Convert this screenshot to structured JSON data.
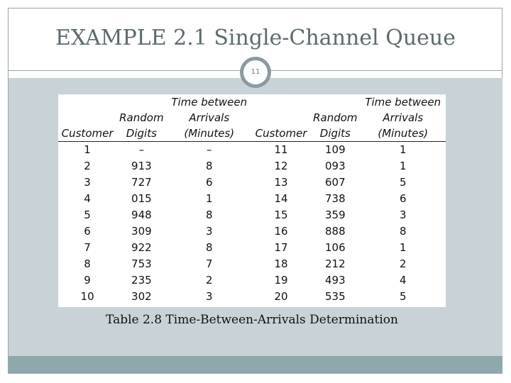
{
  "slide": {
    "title": "EXAMPLE 2.1 Single-Channel Queue",
    "page_number": "11",
    "caption": "Table 2.8 Time-Between-Arrivals Determination"
  },
  "table": {
    "header_row1": [
      "",
      "",
      "Time between",
      "",
      "",
      "Time between"
    ],
    "header_row2": [
      "",
      "Random",
      "Arrivals",
      "",
      "Random",
      "Arrivals"
    ],
    "header_row3": [
      "Customer",
      "Digits",
      "(Minutes)",
      "Customer",
      "Digits",
      "(Minutes)"
    ],
    "rows": [
      [
        "1",
        "–",
        "–",
        "11",
        "109",
        "1"
      ],
      [
        "2",
        "913",
        "8",
        "12",
        "093",
        "1"
      ],
      [
        "3",
        "727",
        "6",
        "13",
        "607",
        "5"
      ],
      [
        "4",
        "015",
        "1",
        "14",
        "738",
        "6"
      ],
      [
        "5",
        "948",
        "8",
        "15",
        "359",
        "3"
      ],
      [
        "6",
        "309",
        "3",
        "16",
        "888",
        "8"
      ],
      [
        "7",
        "922",
        "8",
        "17",
        "106",
        "1"
      ],
      [
        "8",
        "753",
        "7",
        "18",
        "212",
        "2"
      ],
      [
        "9",
        "235",
        "2",
        "19",
        "493",
        "4"
      ],
      [
        "10",
        "302",
        "3",
        "20",
        "535",
        "5"
      ]
    ]
  }
}
